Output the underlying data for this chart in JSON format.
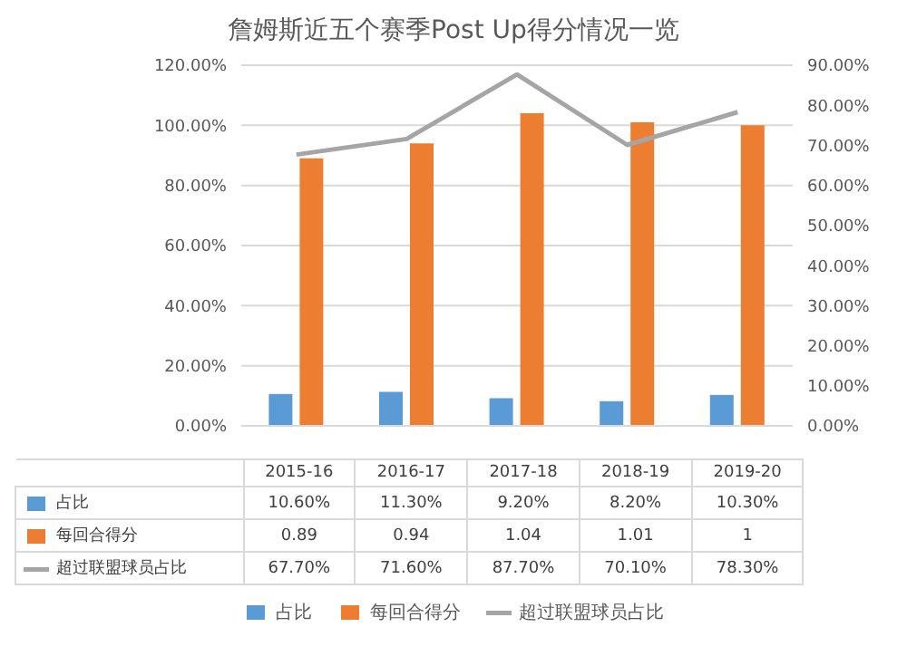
{
  "chart_data": {
    "type": "bar",
    "title": "詹姆斯近五个赛季Post Up得分情况一览",
    "categories": [
      "2015-16",
      "2016-17",
      "2017-18",
      "2018-19",
      "2019-20"
    ],
    "series": [
      {
        "name": "占比",
        "color": "#5b9bd5",
        "values": [
          0.106,
          0.113,
          0.092,
          0.082,
          0.103
        ],
        "value_labels": [
          "10.60%",
          "11.30%",
          "9.20%",
          "8.20%",
          "10.30%"
        ]
      },
      {
        "name": "每回合得分",
        "color": "#ed7d31",
        "values": [
          0.89,
          0.94,
          1.04,
          1.01,
          1
        ],
        "value_labels": [
          "0.89",
          "0.94",
          "1.04",
          "1.01",
          "1"
        ]
      },
      {
        "name": "超过联盟球员占比",
        "type": "line",
        "axis": "y2",
        "color": "#a5a5a5",
        "values": [
          67.7,
          71.6,
          87.7,
          70.1,
          78.3
        ],
        "value_labels": [
          "67.70%",
          "71.60%",
          "87.70%",
          "70.10%",
          "78.30%"
        ]
      }
    ],
    "ylim": [
      0,
      1.2
    ],
    "yticks": [
      {
        "value": 0,
        "label": "0.00%"
      },
      {
        "value": 0.2,
        "label": "20.00%"
      },
      {
        "value": 0.4,
        "label": "40.00%"
      },
      {
        "value": 0.6,
        "label": "60.00%"
      },
      {
        "value": 0.8,
        "label": "80.00%"
      },
      {
        "value": 1,
        "label": "100.00%"
      },
      {
        "value": 1.2,
        "label": "120.00%"
      }
    ],
    "y2lim": [
      0,
      90
    ],
    "y2ticks": [
      {
        "value": 0,
        "label": "0.00%"
      },
      {
        "value": 10,
        "label": "10.00%"
      },
      {
        "value": 20,
        "label": "20.00%"
      },
      {
        "value": 30,
        "label": "30.00%"
      },
      {
        "value": 40,
        "label": "40.00%"
      },
      {
        "value": 50,
        "label": "50.00%"
      },
      {
        "value": 60,
        "label": "60.00%"
      },
      {
        "value": 70,
        "label": "70.00%"
      },
      {
        "value": 80,
        "label": "80.00%"
      },
      {
        "value": 90,
        "label": "90.00%"
      }
    ],
    "grid": "y",
    "legend": "bottom",
    "marker": "none"
  }
}
